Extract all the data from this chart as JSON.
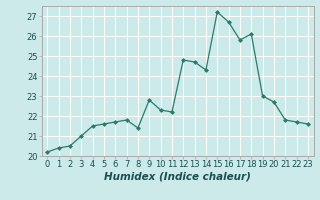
{
  "title": "",
  "xlabel": "Humidex (Indice chaleur)",
  "ylabel": "",
  "x_values": [
    0,
    1,
    2,
    3,
    4,
    5,
    6,
    7,
    8,
    9,
    10,
    11,
    12,
    13,
    14,
    15,
    16,
    17,
    18,
    19,
    20,
    21,
    22,
    23
  ],
  "y_values": [
    20.2,
    20.4,
    20.5,
    21.0,
    21.5,
    21.6,
    21.7,
    21.8,
    21.4,
    22.8,
    22.3,
    22.2,
    24.8,
    24.7,
    24.3,
    27.2,
    26.7,
    25.8,
    26.1,
    23.0,
    22.7,
    21.8,
    21.7,
    21.6
  ],
  "line_color": "#2d7a6a",
  "marker": "D",
  "marker_size": 2.0,
  "bg_color": "#cceaea",
  "grid_color": "#ffffff",
  "ylim": [
    20,
    27.5
  ],
  "yticks": [
    20,
    21,
    22,
    23,
    24,
    25,
    26,
    27
  ],
  "xlim": [
    -0.5,
    23.5
  ],
  "tick_fontsize": 6.0,
  "label_fontsize": 7.5
}
